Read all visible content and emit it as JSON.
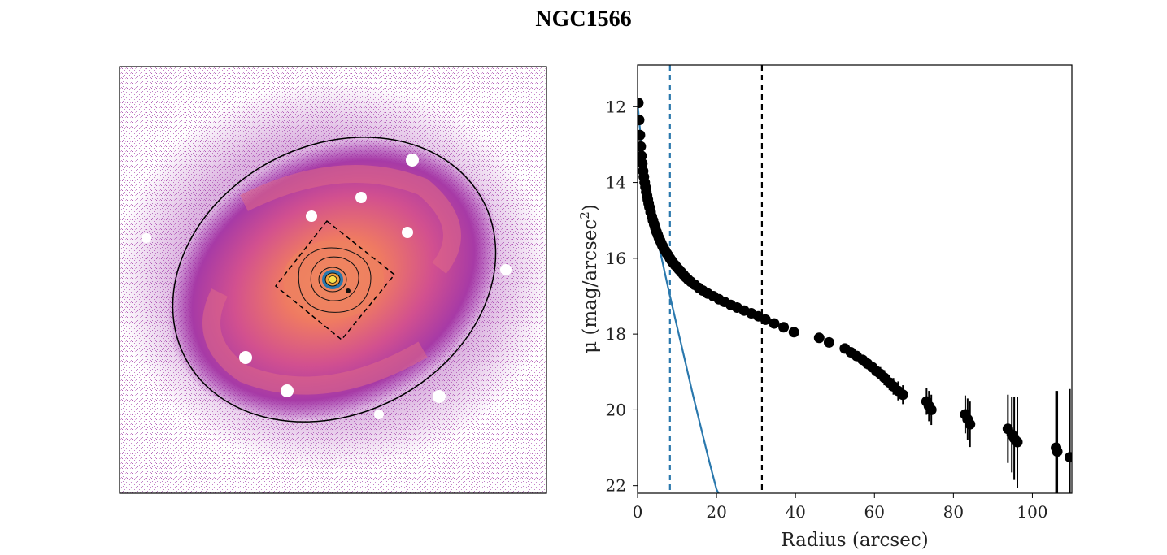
{
  "figure": {
    "title": "NGC1566"
  },
  "colors": {
    "galaxy_outer": "#9b2aa8",
    "galaxy_mid": "#d7548e",
    "galaxy_inner": "#ef8a5e",
    "core": "#f6d04a",
    "model_line": "#2a78ad",
    "inner_dashed": "#2a78ad",
    "outer_dashed": "#000000",
    "points": "#000000"
  },
  "image_panel": {
    "annotations": [
      "outer ellipse",
      "dashed box",
      "isophote contours",
      "masked stars"
    ]
  },
  "chart_data": {
    "type": "scatter",
    "xlabel": "Radius (arcsec)",
    "ylabel": "μ (mag/arcsec²)",
    "ylabel_main": "μ (mag/arcsec",
    "ylabel_sup": "2",
    "ylabel_end": ")",
    "xlim": [
      0,
      110
    ],
    "ylim": [
      22.2,
      10.9
    ],
    "y_inverted": true,
    "xticks": [
      0,
      20,
      40,
      60,
      80,
      100
    ],
    "yticks": [
      12,
      14,
      16,
      18,
      20,
      22
    ],
    "vlines": [
      {
        "x": 8.2,
        "color": "#2a78ad",
        "style": "dashed",
        "name": "inner-vline"
      },
      {
        "x": 31.5,
        "color": "#000000",
        "style": "dashed",
        "name": "outer-vline"
      }
    ],
    "model_curve": {
      "name": "blue-fit",
      "x": [
        0.0,
        1.0,
        2.0,
        3.0,
        4.0,
        5.0,
        6.0,
        8.0,
        10.0,
        12.0,
        14.0,
        16.0,
        18.0,
        20.0,
        20.5
      ],
      "y": [
        11.9,
        13.05,
        13.85,
        14.5,
        15.0,
        15.5,
        15.95,
        16.9,
        17.8,
        18.7,
        19.6,
        20.45,
        21.3,
        22.1,
        22.2
      ]
    },
    "series": [
      {
        "name": "profile",
        "x": [
          0.2,
          0.4,
          0.6,
          0.8,
          1.0,
          1.2,
          1.4,
          1.6,
          1.8,
          2.0,
          2.2,
          2.4,
          2.6,
          2.8,
          3.0,
          3.3,
          3.6,
          3.9,
          4.2,
          4.5,
          4.8,
          5.1,
          5.4,
          5.7,
          6.0,
          6.3,
          6.6,
          7.0,
          7.4,
          7.8,
          8.2,
          8.6,
          9.0,
          9.5,
          10.0,
          10.5,
          11.0,
          11.6,
          12.2,
          12.8,
          13.5,
          14.5,
          15.5,
          16.5,
          17.8,
          19.2,
          20.6,
          22.0,
          23.6,
          25.2,
          27.0,
          28.8,
          30.6,
          32.4,
          34.6,
          37.0,
          39.6,
          46.0,
          48.5,
          52.5,
          54.0,
          55.5,
          57.0,
          58.2,
          59.5,
          60.5,
          61.5,
          62.5,
          63.8,
          64.8,
          66.0,
          67.2,
          73.2,
          73.8,
          74.4,
          83.0,
          83.6,
          84.2,
          93.8,
          94.8,
          95.4,
          96.2,
          106.0,
          106.3,
          109.5
        ],
        "y": [
          11.9,
          12.35,
          12.75,
          13.05,
          13.3,
          13.5,
          13.7,
          13.85,
          14.0,
          14.12,
          14.25,
          14.35,
          14.45,
          14.55,
          14.65,
          14.78,
          14.9,
          15.0,
          15.1,
          15.2,
          15.3,
          15.38,
          15.46,
          15.53,
          15.6,
          15.67,
          15.73,
          15.8,
          15.87,
          15.93,
          16.0,
          16.06,
          16.12,
          16.18,
          16.24,
          16.3,
          16.36,
          16.43,
          16.5,
          16.56,
          16.62,
          16.7,
          16.78,
          16.85,
          16.93,
          17.0,
          17.08,
          17.15,
          17.23,
          17.3,
          17.38,
          17.45,
          17.53,
          17.62,
          17.72,
          17.82,
          17.95,
          18.1,
          18.22,
          18.38,
          18.48,
          18.58,
          18.68,
          18.78,
          18.88,
          18.98,
          19.05,
          19.15,
          19.28,
          19.38,
          19.5,
          19.6,
          19.78,
          19.9,
          20.0,
          20.12,
          20.25,
          20.38,
          20.5,
          20.65,
          20.75,
          20.85,
          21.0,
          21.1,
          21.25
        ],
        "err": [
          0.02,
          0.02,
          0.02,
          0.02,
          0.02,
          0.02,
          0.02,
          0.02,
          0.02,
          0.02,
          0.02,
          0.02,
          0.02,
          0.02,
          0.02,
          0.02,
          0.02,
          0.02,
          0.02,
          0.02,
          0.02,
          0.02,
          0.02,
          0.02,
          0.02,
          0.02,
          0.02,
          0.02,
          0.02,
          0.02,
          0.02,
          0.02,
          0.02,
          0.02,
          0.02,
          0.02,
          0.02,
          0.02,
          0.02,
          0.02,
          0.02,
          0.02,
          0.02,
          0.02,
          0.02,
          0.02,
          0.02,
          0.02,
          0.02,
          0.02,
          0.02,
          0.02,
          0.02,
          0.02,
          0.02,
          0.02,
          0.02,
          0.05,
          0.05,
          0.08,
          0.1,
          0.12,
          0.12,
          0.15,
          0.15,
          0.15,
          0.18,
          0.2,
          0.2,
          0.22,
          0.25,
          0.25,
          0.35,
          0.4,
          0.4,
          0.5,
          0.55,
          0.6,
          0.9,
          1.0,
          1.1,
          1.2,
          1.5,
          1.6,
          1.8
        ]
      }
    ]
  }
}
